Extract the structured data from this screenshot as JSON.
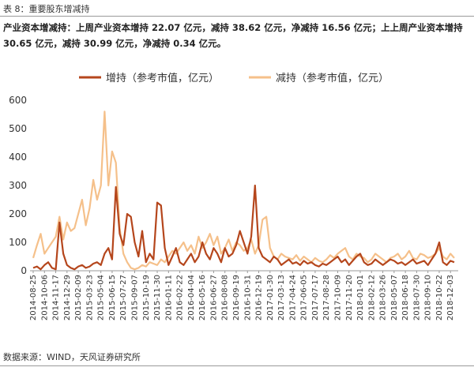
{
  "header": {
    "title": "表 8：重要股东增减持"
  },
  "summary": "产业资本增减持：上周产业资本增持 22.07 亿元，减持 38.62 亿元，净减持 16.56 亿元；上上周产业资本增持 30.65 亿元，减持 30.99 亿元，净减持 0.34 亿元。",
  "chart_data": {
    "type": "line",
    "categories": [
      "2014-08-25",
      null,
      null,
      "2014-10-06",
      null,
      null,
      "2014-11-17",
      null,
      null,
      "2014-12-29",
      null,
      null,
      "2015-02-09",
      null,
      null,
      "2015-03-23",
      null,
      null,
      "2015-05-04",
      null,
      null,
      "2015-06-15",
      null,
      null,
      "2015-07-27",
      null,
      null,
      "2015-09-07",
      null,
      null,
      "2015-10-19",
      null,
      null,
      "2015-11-30",
      null,
      null,
      "2016-01-11",
      null,
      null,
      "2016-02-22",
      null,
      null,
      "2016-04-04",
      null,
      null,
      "2016-05-16",
      null,
      null,
      "2016-06-27",
      null,
      null,
      "2016-08-08",
      null,
      null,
      "2016-09-19",
      null,
      null,
      "2016-10-31",
      null,
      null,
      "2016-12-19",
      null,
      null,
      "2017-01-30",
      null,
      null,
      "2017-03-13",
      null,
      null,
      "2017-04-24",
      null,
      null,
      "2017-06-05",
      null,
      null,
      "2017-07-17",
      null,
      null,
      "2017-08-28",
      null,
      null,
      "2017-10-09",
      null,
      null,
      "2017-11-20",
      null,
      null,
      "2018-01-01",
      null,
      null,
      "2018-02-12",
      null,
      null,
      "2018-03-26",
      null,
      null,
      "2018-05-07",
      null,
      null,
      "2018-06-18",
      null,
      null,
      "2018-07-30",
      null,
      null,
      "2018-09-10",
      null,
      null,
      "2018-10-22",
      null,
      null,
      "2018-12-03",
      null
    ],
    "series": [
      {
        "name": "增持（参考市值，亿元）",
        "color": "#b5461c",
        "values": [
          10,
          15,
          5,
          20,
          30,
          10,
          5,
          170,
          60,
          20,
          10,
          5,
          15,
          20,
          10,
          15,
          25,
          30,
          20,
          60,
          80,
          40,
          295,
          130,
          90,
          200,
          190,
          100,
          50,
          140,
          30,
          60,
          40,
          240,
          230,
          80,
          20,
          50,
          80,
          30,
          20,
          40,
          60,
          30,
          50,
          100,
          60,
          40,
          80,
          60,
          30,
          80,
          50,
          60,
          90,
          140,
          100,
          60,
          120,
          300,
          80,
          50,
          40,
          30,
          50,
          40,
          20,
          30,
          40,
          25,
          30,
          20,
          35,
          25,
          30,
          20,
          15,
          25,
          20,
          30,
          40,
          50,
          30,
          40,
          20,
          35,
          50,
          60,
          30,
          20,
          25,
          40,
          30,
          20,
          30,
          40,
          35,
          25,
          30,
          20,
          30,
          40,
          25,
          30,
          35,
          20,
          40,
          60,
          100,
          30,
          20,
          35,
          30
        ]
      },
      {
        "name": "减持（参考市值，亿元）",
        "color": "#f5c08a",
        "values": [
          45,
          90,
          130,
          60,
          80,
          100,
          120,
          190,
          110,
          170,
          140,
          150,
          200,
          250,
          160,
          220,
          320,
          250,
          300,
          560,
          300,
          420,
          380,
          150,
          60,
          30,
          10,
          5,
          10,
          20,
          15,
          30,
          25,
          20,
          40,
          30,
          50,
          70,
          60,
          80,
          100,
          70,
          90,
          60,
          120,
          80,
          100,
          130,
          90,
          120,
          60,
          80,
          110,
          70,
          100,
          90,
          70,
          80,
          110,
          60,
          90,
          180,
          190,
          80,
          50,
          40,
          60,
          50,
          45,
          40,
          55,
          35,
          50,
          40,
          30,
          45,
          35,
          30,
          40,
          55,
          45,
          60,
          70,
          80,
          50,
          40,
          60,
          50,
          45,
          30,
          40,
          60,
          50,
          40,
          30,
          45,
          50,
          60,
          40,
          50,
          70,
          45,
          40,
          60,
          55,
          45,
          50,
          60,
          80,
          50,
          40,
          60,
          45
        ]
      }
    ],
    "ylim": [
      0,
      600
    ],
    "yticks": [
      0,
      100,
      200,
      300,
      400,
      500,
      600
    ],
    "grid": false,
    "legend": "top"
  },
  "source": "数据来源：WIND，天风证券研究所"
}
